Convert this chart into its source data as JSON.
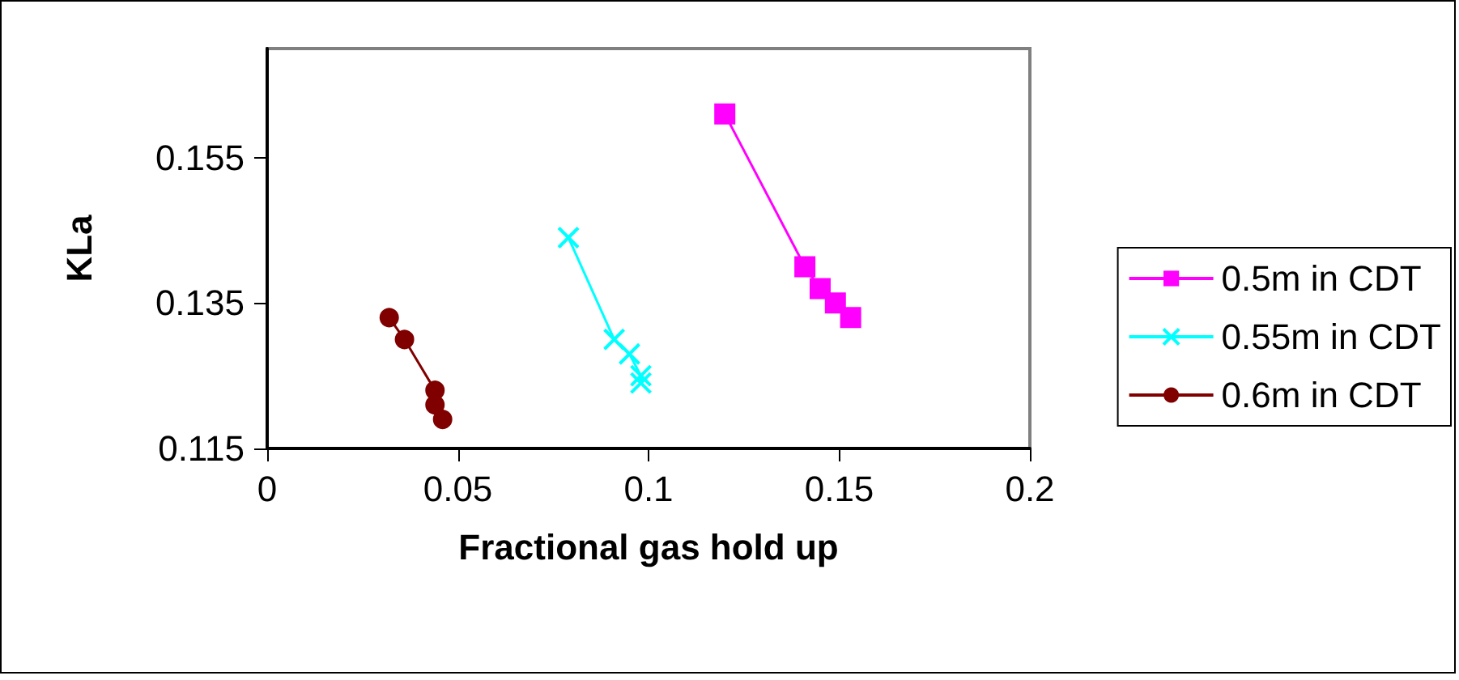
{
  "chart_data": {
    "type": "line",
    "xlabel": "Fractional gas hold up",
    "ylabel": "KLa",
    "xlim": [
      0,
      0.2
    ],
    "xticks": [
      0,
      0.05,
      0.1,
      0.15,
      0.2
    ],
    "ylim": [
      0.115,
      0.17
    ],
    "yticks": [
      0.115,
      0.135,
      0.155
    ],
    "grid": false,
    "legend": "right",
    "series": [
      {
        "name": "0.5m in CDT",
        "color": "#ff00ff",
        "marker": "square",
        "x": [
          0.12,
          0.141,
          0.145,
          0.149,
          0.153
        ],
        "values": [
          0.161,
          0.14,
          0.137,
          0.135,
          0.133
        ]
      },
      {
        "name": "0.55m in CDT",
        "color": "#00ffff",
        "marker": "cross",
        "x": [
          0.079,
          0.091,
          0.095,
          0.098,
          0.098
        ],
        "values": [
          0.144,
          0.13,
          0.128,
          0.125,
          0.124
        ]
      },
      {
        "name": "0.6m in CDT",
        "color": "#800000",
        "marker": "circle",
        "x": [
          0.032,
          0.036,
          0.044,
          0.044,
          0.046
        ],
        "values": [
          0.133,
          0.13,
          0.123,
          0.121,
          0.119
        ]
      }
    ]
  }
}
